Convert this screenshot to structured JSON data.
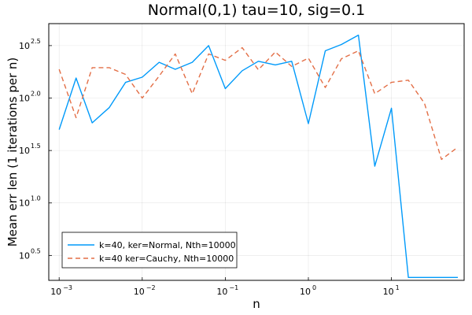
{
  "chart_data": {
    "type": "line",
    "title": "Normal(0,1) tau=10, sig=0.1",
    "xlabel": "n",
    "ylabel": "Mean err len (1 iterations per n)",
    "xscale": "log",
    "yscale": "log",
    "xlim": [
      0.00075,
      75
    ],
    "ylim": [
      1.83,
      512
    ],
    "grid": true,
    "legend_position": "bottom-left",
    "x_ticks": [
      {
        "value": 0.001,
        "base": "10",
        "exp": "−3"
      },
      {
        "value": 0.01,
        "base": "10",
        "exp": "−2"
      },
      {
        "value": 0.1,
        "base": "10",
        "exp": "−1"
      },
      {
        "value": 1,
        "base": "10",
        "exp": "0"
      },
      {
        "value": 10,
        "base": "10",
        "exp": "1"
      }
    ],
    "y_ticks": [
      {
        "value": 3.162,
        "base": "10",
        "exp": "0.5"
      },
      {
        "value": 10,
        "base": "10",
        "exp": "1.0"
      },
      {
        "value": 31.62,
        "base": "10",
        "exp": "1.5"
      },
      {
        "value": 100,
        "base": "10",
        "exp": "2.0"
      },
      {
        "value": 316.2,
        "base": "10",
        "exp": "2.5"
      }
    ],
    "x": [
      0.001,
      0.0016,
      0.0025,
      0.004,
      0.0063,
      0.01,
      0.016,
      0.025,
      0.04,
      0.063,
      0.1,
      0.16,
      0.25,
      0.4,
      0.63,
      1,
      1.6,
      2.5,
      4,
      6.3,
      10,
      16,
      25,
      40,
      63
    ],
    "series": [
      {
        "name": "k=40, ker=Normal, Nth=10000",
        "color": "#009AFA",
        "dash": "solid",
        "values": [
          50,
          155,
          58,
          81,
          141,
          158,
          219,
          188,
          219,
          316,
          123,
          182,
          224,
          207,
          224,
          57,
          282,
          324,
          398,
          22.4,
          80,
          1.95,
          1.95,
          1.95,
          1.95
        ]
      },
      {
        "name": "k=40 ker=Cauchy, Nth=10000",
        "color": "#E36F47",
        "dash": "dashed",
        "values": [
          188,
          65,
          195,
          195,
          168,
          100,
          162,
          263,
          110,
          263,
          229,
          302,
          186,
          275,
          200,
          240,
          126,
          237,
          282,
          110,
          141,
          148,
          89,
          26,
          34
        ]
      }
    ]
  }
}
